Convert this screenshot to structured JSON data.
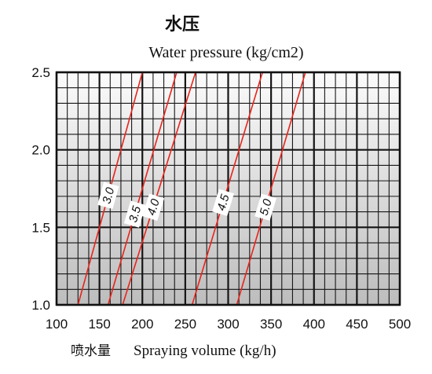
{
  "chart_data": {
    "type": "line",
    "title": "水压",
    "subtitle": "Water pressure   (kg/cm2)",
    "xlabel_cn": "喷水量",
    "xlabel_en": "Spraying volume (kg/h)",
    "xlim": [
      100,
      500
    ],
    "ylim": [
      1.0,
      2.5
    ],
    "x_ticks": [
      "100",
      "150",
      "200",
      "250",
      "300",
      "350",
      "400",
      "450",
      "500"
    ],
    "y_ticks": [
      "1.0",
      "1.5",
      "2.0",
      "2.5"
    ],
    "grid": true,
    "series": [
      {
        "name": "3.0",
        "x": [
          125,
          200
        ],
        "y": [
          1.0,
          2.5
        ]
      },
      {
        "name": "3.5",
        "x": [
          160,
          240
        ],
        "y": [
          1.0,
          2.5
        ]
      },
      {
        "name": "4.0",
        "x": [
          177,
          262
        ],
        "y": [
          1.0,
          2.5
        ]
      },
      {
        "name": "4.5",
        "x": [
          258,
          340
        ],
        "y": [
          1.0,
          2.5
        ]
      },
      {
        "name": "5.0",
        "x": [
          310,
          390
        ],
        "y": [
          1.0,
          2.5
        ]
      }
    ],
    "line_color": "#e8231a"
  }
}
